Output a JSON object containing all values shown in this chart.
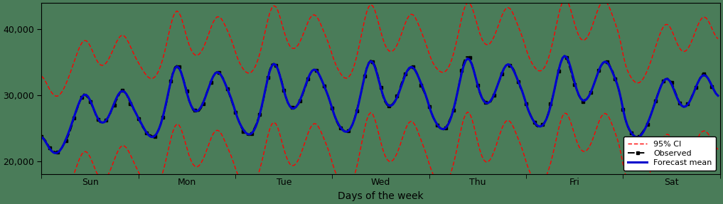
{
  "title": "",
  "xlabel": "Days of the week",
  "ylabel": "",
  "ylim": [
    18000,
    44000
  ],
  "yticks": [
    20000,
    30000,
    40000
  ],
  "background_color": "#4a7c59",
  "days": [
    "Sun",
    "Mon",
    "Tue",
    "Wed",
    "Thu",
    "Fri",
    "Sat"
  ],
  "n_points": 336,
  "legend_labels": [
    "Observed",
    "Forecast mean",
    "95% CI"
  ],
  "forecast_color": "#0000cc",
  "observed_color": "#000000",
  "ci_color": "#ff0000",
  "observed_lw": 1.4,
  "forecast_lw": 2.2,
  "ci_lw": 1.0,
  "spine_color": "#000000",
  "tick_label_color": "#000000"
}
